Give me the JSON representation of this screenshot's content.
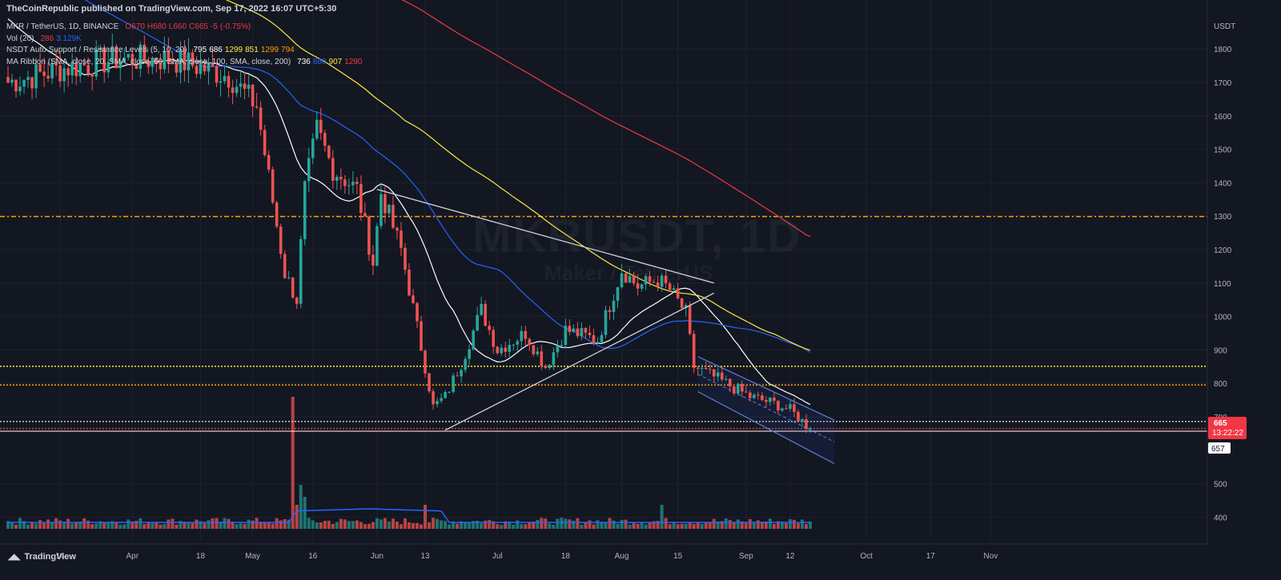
{
  "header": "TheCoinRepublic published on TradingView.com, Sep 17, 2022 16:07 UTC+5:30",
  "legend": [
    {
      "name": "MKR / TetherUS, 1D, BINANCE",
      "values": [
        "O670",
        "H680",
        "L660",
        "C665",
        "-5",
        "(-0.75%)"
      ],
      "colors": [
        "#f23645",
        "#f23645",
        "#f23645",
        "#f23645",
        "#f23645",
        "#f23645"
      ]
    },
    {
      "name": "Vol (20)",
      "values": [
        "286",
        "3.129K"
      ],
      "colors": [
        "#f23645",
        "#2962ff"
      ]
    },
    {
      "name": "NSDT Auto Support / Resistance Levels (5, 10, 20)",
      "values": [
        "795",
        "686",
        "1299",
        "851",
        "1299",
        "794"
      ],
      "colors": [
        "#ffffff",
        "#ffffff",
        "#ffeb3b",
        "#ffeb3b",
        "#ff9800",
        "#ff9800"
      ]
    },
    {
      "name": "MA Ribbon (SMA, close, 20, SMA, close, 50, SMA, close, 100, SMA, close, 200)",
      "values": [
        "736",
        "880",
        "907",
        "1290"
      ],
      "colors": [
        "#ffffff",
        "#2962ff",
        "#ffeb3b",
        "#f23645"
      ]
    }
  ],
  "watermark": {
    "symbol": "MKRUSDT, 1D",
    "name": "Maker / TetherUS"
  },
  "branding": "TradingView",
  "chart_data": {
    "type": "candlestick",
    "symbol": "MKR / TetherUS",
    "interval": "1D",
    "exchange": "BINANCE",
    "currency": "USDT",
    "y_ticks": [
      1800,
      1700,
      1600,
      1500,
      1400,
      1300,
      1200,
      1100,
      1000,
      900,
      800,
      700,
      500,
      400
    ],
    "x_ticks": [
      "14",
      "Apr",
      "18",
      "May",
      "16",
      "Jun",
      "13",
      "Jul",
      "18",
      "Aug",
      "15",
      "Sep",
      "12",
      "Oct",
      "17",
      "Nov"
    ],
    "price_labels": {
      "last": "665",
      "countdown": "13:22:22",
      "support": "657"
    },
    "levels": [
      {
        "value": 1299,
        "color": "#ffa000",
        "style": "dash-dot"
      },
      {
        "value": 851,
        "color": "#ffeb3b",
        "style": "dotted"
      },
      {
        "value": 795,
        "color": "#ffa000",
        "style": "dotted"
      },
      {
        "value": 686,
        "color": "#c8c8c8",
        "style": "dotted"
      },
      {
        "value": 665,
        "color": "#f23645",
        "style": "dotted"
      },
      {
        "value": 657,
        "color": "#ffffff",
        "style": "solid"
      }
    ],
    "key_prices": [
      {
        "date": "Mar 1",
        "value": 1700
      },
      {
        "date": "Mar 14",
        "value": 1740
      },
      {
        "date": "Mar 28",
        "value": 1770
      },
      {
        "date": "Apr 11",
        "value": 1770
      },
      {
        "date": "Apr 25",
        "value": 1720
      },
      {
        "date": "May 2",
        "value": 1630
      },
      {
        "date": "May 9",
        "value": 1130
      },
      {
        "date": "May 12",
        "value": 1050
      },
      {
        "date": "May 14",
        "value": 1380
      },
      {
        "date": "May 17",
        "value": 1560
      },
      {
        "date": "May 21",
        "value": 1440
      },
      {
        "date": "May 27",
        "value": 1380
      },
      {
        "date": "May 31",
        "value": 1160
      },
      {
        "date": "Jun 2",
        "value": 1370
      },
      {
        "date": "Jun 7",
        "value": 1200
      },
      {
        "date": "Jun 13",
        "value": 850
      },
      {
        "date": "Jun 15",
        "value": 730
      },
      {
        "date": "Jun 18",
        "value": 760
      },
      {
        "date": "Jun 22",
        "value": 860
      },
      {
        "date": "Jun 27",
        "value": 1020
      },
      {
        "date": "Jul 1",
        "value": 900
      },
      {
        "date": "Jul 8",
        "value": 950
      },
      {
        "date": "Jul 13",
        "value": 850
      },
      {
        "date": "Jul 18",
        "value": 960
      },
      {
        "date": "Jul 26",
        "value": 930
      },
      {
        "date": "Aug 1",
        "value": 1140
      },
      {
        "date": "Aug 5",
        "value": 1090
      },
      {
        "date": "Aug 10",
        "value": 1110
      },
      {
        "date": "Aug 13",
        "value": 1080
      },
      {
        "date": "Aug 17",
        "value": 1010
      },
      {
        "date": "Aug 19",
        "value": 850
      },
      {
        "date": "Aug 27",
        "value": 800
      },
      {
        "date": "Sep 2",
        "value": 760
      },
      {
        "date": "Sep 8",
        "value": 740
      },
      {
        "date": "Sep 12",
        "value": 720
      },
      {
        "date": "Sep 17",
        "value": 665
      }
    ],
    "ma_ribbon": [
      {
        "name": "SMA 20",
        "color": "#ffffff",
        "last": 736
      },
      {
        "name": "SMA 50",
        "color": "#2962ff",
        "last": 880
      },
      {
        "name": "SMA 100",
        "color": "#ffeb3b",
        "last": 907
      },
      {
        "name": "SMA 200",
        "color": "#f23645",
        "last": 1290
      }
    ],
    "annotations": [
      "descending trendline from ~1380 (Jun 2) to ~1100 (Aug 24)",
      "ascending trendline from ~660 (Jun 18) to ~1070 (Aug 24)",
      "descending channel Aug 20 - Sep 24"
    ]
  }
}
